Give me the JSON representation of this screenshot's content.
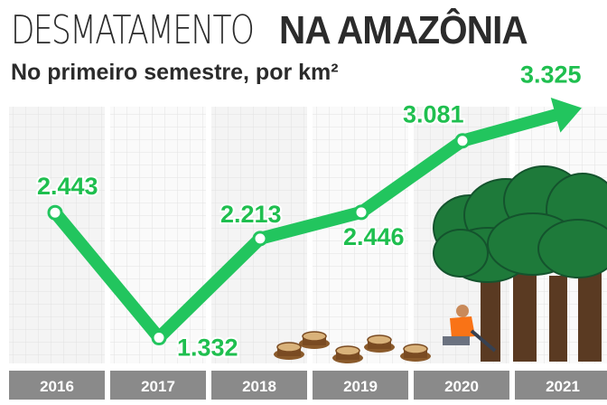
{
  "header": {
    "title_light": "DESMATAMENTO",
    "title_bold": "NA AMAZÔNIA",
    "subtitle": "No primeiro semestre, por km²"
  },
  "colors": {
    "line": "#22c55e",
    "label": "#1fbf4f",
    "year_bar": "#8a8a8a",
    "trees": "#1e7a3a",
    "trunks": "#5a3a22"
  },
  "chart_data": {
    "type": "line",
    "title": "DESMATAMENTO NA AMAZÔNIA",
    "subtitle": "No primeiro semestre, por km²",
    "categories": [
      "2016",
      "2017",
      "2018",
      "2019",
      "2020",
      "2021"
    ],
    "values": [
      2443,
      1332,
      2213,
      2446,
      3081,
      3325
    ],
    "value_labels": [
      "2.443",
      "1.332",
      "2.213",
      "2.446",
      "3.081",
      "3.325"
    ],
    "xlabel": "",
    "ylabel": "",
    "ylim": [
      1000,
      3500
    ],
    "grid": true,
    "last_point_arrow": true
  }
}
